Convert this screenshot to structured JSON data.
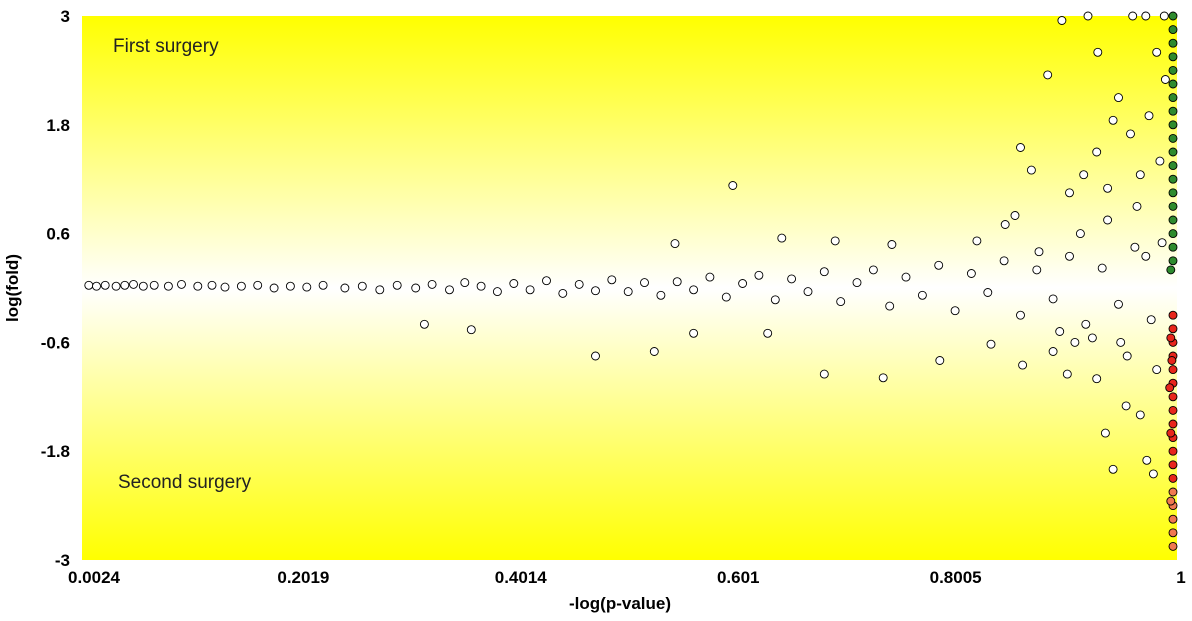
{
  "chart_data": {
    "type": "scatter",
    "title": "",
    "xlabel": "-log(p-value)",
    "ylabel": "log(fold)",
    "x_ticks": [
      "0.0024",
      "0.2019",
      "0.4014",
      "0.601",
      "0.8005",
      "1"
    ],
    "x_tick_values": [
      0.0024,
      0.2019,
      0.4014,
      0.601,
      0.8005,
      1
    ],
    "y_ticks": [
      "3",
      "1.8",
      "0.6",
      "-0.6",
      "-1.8",
      "-3"
    ],
    "y_tick_values": [
      3,
      1.8,
      0.6,
      -0.6,
      -1.8,
      -3
    ],
    "xlim": [
      0.0024,
      1
    ],
    "ylim": [
      -3,
      3
    ],
    "grid": false,
    "legend": "none",
    "annotations": {
      "top": "First surgery",
      "bottom": "Second surgery"
    },
    "colors": {
      "background_edge": "#ffff00",
      "background_center": "#ffffff",
      "neutral_marker": "#ffffff",
      "marker_edge": "#000000",
      "up_marker": "#2e8b2e",
      "down_marker": "#e8261c",
      "low_marker": "#f07850"
    },
    "series": [
      {
        "points": [
          [
            0.005,
            0.03
          ],
          [
            0.012,
            0.02
          ],
          [
            0.02,
            0.03
          ],
          [
            0.03,
            0.02
          ],
          [
            0.038,
            0.03
          ],
          [
            0.046,
            0.04
          ],
          [
            0.055,
            0.02
          ],
          [
            0.065,
            0.03
          ],
          [
            0.078,
            0.02
          ],
          [
            0.09,
            0.04
          ],
          [
            0.105,
            0.02
          ],
          [
            0.118,
            0.03
          ],
          [
            0.13,
            0.01
          ],
          [
            0.145,
            0.02
          ],
          [
            0.16,
            0.03
          ],
          [
            0.175,
            0.0
          ],
          [
            0.19,
            0.02
          ],
          [
            0.205,
            0.01
          ],
          [
            0.22,
            0.03
          ],
          [
            0.24,
            0.0
          ],
          [
            0.256,
            0.02
          ],
          [
            0.272,
            -0.02
          ],
          [
            0.288,
            0.03
          ],
          [
            0.305,
            0.0
          ],
          [
            0.32,
            0.04
          ],
          [
            0.336,
            -0.02
          ],
          [
            0.35,
            0.06
          ],
          [
            0.365,
            0.02
          ],
          [
            0.38,
            -0.04
          ],
          [
            0.395,
            0.05
          ],
          [
            0.41,
            -0.02
          ],
          [
            0.425,
            0.08
          ],
          [
            0.44,
            -0.06
          ],
          [
            0.455,
            0.04
          ],
          [
            0.47,
            -0.03
          ],
          [
            0.485,
            0.09
          ],
          [
            0.5,
            -0.04
          ],
          [
            0.515,
            0.06
          ],
          [
            0.53,
            -0.08
          ],
          [
            0.545,
            0.07
          ],
          [
            0.56,
            -0.02
          ],
          [
            0.575,
            0.12
          ],
          [
            0.59,
            -0.1
          ],
          [
            0.605,
            0.05
          ],
          [
            0.62,
            0.14
          ],
          [
            0.635,
            -0.13
          ],
          [
            0.65,
            0.1
          ],
          [
            0.665,
            -0.04
          ],
          [
            0.68,
            0.18
          ],
          [
            0.695,
            -0.15
          ],
          [
            0.71,
            0.06
          ],
          [
            0.725,
            0.2
          ],
          [
            0.74,
            -0.2
          ],
          [
            0.755,
            0.12
          ],
          [
            0.77,
            -0.08
          ],
          [
            0.785,
            0.25
          ],
          [
            0.8,
            -0.25
          ],
          [
            0.815,
            0.16
          ],
          [
            0.83,
            -0.05
          ],
          [
            0.845,
            0.3
          ],
          [
            0.86,
            -0.3
          ],
          [
            0.875,
            0.2
          ],
          [
            0.89,
            -0.12
          ],
          [
            0.905,
            0.35
          ],
          [
            0.92,
            -0.4
          ],
          [
            0.935,
            0.22
          ],
          [
            0.95,
            -0.18
          ],
          [
            0.965,
            0.45
          ],
          [
            0.98,
            -0.35
          ],
          [
            0.99,
            0.5
          ],
          [
            0.313,
            -0.4
          ],
          [
            0.356,
            -0.46
          ],
          [
            0.47,
            -0.75
          ],
          [
            0.524,
            -0.7
          ],
          [
            0.596,
            1.13
          ],
          [
            0.628,
            -0.5
          ],
          [
            0.68,
            -0.95
          ],
          [
            0.734,
            -0.99
          ],
          [
            0.786,
            -0.8
          ],
          [
            0.862,
            -0.85
          ],
          [
            0.56,
            -0.5
          ],
          [
            0.543,
            0.49
          ],
          [
            0.641,
            0.55
          ],
          [
            0.69,
            0.52
          ],
          [
            0.742,
            0.48
          ],
          [
            0.855,
            0.8
          ],
          [
            0.86,
            1.55
          ],
          [
            0.87,
            1.3
          ],
          [
            0.885,
            2.35
          ],
          [
            0.898,
            2.95
          ],
          [
            0.922,
            3.0
          ],
          [
            0.931,
            2.6
          ],
          [
            0.94,
            1.1
          ],
          [
            0.95,
            2.1
          ],
          [
            0.963,
            3.0
          ],
          [
            0.975,
            3.0
          ],
          [
            0.978,
            1.9
          ],
          [
            0.985,
            2.6
          ],
          [
            0.992,
            3.0
          ],
          [
            0.957,
            -1.3
          ],
          [
            0.93,
            -1.0
          ],
          [
            0.938,
            -1.6
          ],
          [
            0.91,
            -0.6
          ],
          [
            0.89,
            -0.7
          ],
          [
            0.945,
            -2.0
          ],
          [
            0.976,
            -1.9
          ],
          [
            0.982,
            -2.05
          ],
          [
            0.903,
            -0.95
          ],
          [
            0.958,
            -0.75
          ],
          [
            0.97,
            -1.4
          ],
          [
            0.82,
            0.52
          ],
          [
            0.833,
            -0.62
          ],
          [
            0.846,
            0.7
          ],
          [
            0.877,
            0.4
          ],
          [
            0.896,
            -0.48
          ],
          [
            0.915,
            0.6
          ],
          [
            0.926,
            -0.55
          ],
          [
            0.94,
            0.75
          ],
          [
            0.952,
            -0.6
          ],
          [
            0.967,
            0.9
          ],
          [
            0.97,
            1.25
          ],
          [
            0.975,
            0.35
          ],
          [
            0.985,
            -0.9
          ],
          [
            0.988,
            1.4
          ],
          [
            0.961,
            1.7
          ],
          [
            0.945,
            1.85
          ],
          [
            0.93,
            1.5
          ],
          [
            0.918,
            1.25
          ],
          [
            0.905,
            1.05
          ],
          [
            0.993,
            2.3
          ]
        ]
      },
      {
        "points": [
          [
            1.0,
            3.0
          ],
          [
            1.0,
            2.85
          ],
          [
            1.0,
            2.7
          ],
          [
            1.0,
            2.55
          ],
          [
            1.0,
            2.4
          ],
          [
            1.0,
            2.25
          ],
          [
            1.0,
            2.1
          ],
          [
            1.0,
            1.95
          ],
          [
            1.0,
            1.8
          ],
          [
            1.0,
            1.65
          ],
          [
            1.0,
            1.5
          ],
          [
            1.0,
            1.35
          ],
          [
            1.0,
            1.2
          ],
          [
            1.0,
            1.05
          ],
          [
            1.0,
            0.9
          ],
          [
            1.0,
            0.75
          ],
          [
            1.0,
            0.6
          ],
          [
            1.0,
            0.45
          ],
          [
            1.0,
            0.3
          ],
          [
            0.998,
            0.2
          ]
        ]
      },
      {
        "points": [
          [
            1.0,
            -0.3
          ],
          [
            1.0,
            -0.45
          ],
          [
            1.0,
            -0.6
          ],
          [
            1.0,
            -0.75
          ],
          [
            1.0,
            -0.9
          ],
          [
            1.0,
            -1.05
          ],
          [
            1.0,
            -1.2
          ],
          [
            1.0,
            -1.35
          ],
          [
            1.0,
            -1.5
          ],
          [
            1.0,
            -1.65
          ],
          [
            1.0,
            -1.8
          ],
          [
            1.0,
            -1.95
          ],
          [
            1.0,
            -2.1
          ],
          [
            0.998,
            -0.55
          ],
          [
            0.999,
            -0.8
          ],
          [
            0.997,
            -1.1
          ],
          [
            0.998,
            -1.6
          ]
        ]
      },
      {
        "points": [
          [
            1.0,
            -2.25
          ],
          [
            1.0,
            -2.4
          ],
          [
            1.0,
            -2.55
          ],
          [
            1.0,
            -2.7
          ],
          [
            1.0,
            -2.85
          ],
          [
            0.998,
            -2.35
          ]
        ]
      }
    ]
  }
}
